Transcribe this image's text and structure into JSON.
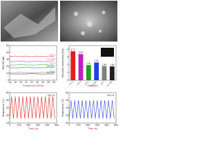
{
  "chart_data": [
    {
      "type": "line",
      "xlabel": "Frequency (GHz)",
      "ylabel": "EMI SE (dB)",
      "x": [
        18,
        19,
        20,
        21,
        22,
        23,
        24,
        25,
        26
      ],
      "xlim": [
        18,
        26.5
      ],
      "xticks": [
        18,
        19,
        20,
        21,
        22,
        23,
        24,
        25,
        26
      ],
      "ylim": [
        0,
        50
      ],
      "yticks": [
        0,
        10,
        20,
        30,
        40,
        50
      ],
      "series": [
        {
          "name": "Ni-C-6",
          "color": "#e02020",
          "values": [
            34,
            35,
            34,
            35,
            34,
            35,
            34,
            35,
            34
          ]
        },
        {
          "name": "Ni-C-8(A)",
          "color": "#c020c0",
          "values": [
            27,
            27,
            28,
            27,
            27,
            28,
            27,
            27,
            28
          ]
        },
        {
          "name": "Ni-C-4",
          "color": "#20a020",
          "values": [
            22,
            22,
            23,
            22,
            22,
            22,
            23,
            22,
            22
          ]
        },
        {
          "name": "Ni-C-6(G)",
          "color": "#2040e0",
          "values": [
            18,
            18,
            18,
            19,
            18,
            18,
            18,
            19,
            18
          ]
        },
        {
          "name": "Ni-C-2",
          "color": "#808080",
          "values": [
            11,
            11,
            12,
            11,
            11,
            11,
            12,
            11,
            11
          ]
        },
        {
          "name": "Ni-C-4(G)",
          "color": "#202020",
          "values": [
            9,
            9,
            9,
            9,
            10,
            9,
            9,
            9,
            9
          ]
        }
      ]
    },
    {
      "type": "bar",
      "xlabel": "Samples",
      "ylabel": "Electrical conductivity (S/m)",
      "categories": [
        "Ni-C-6",
        "Ni-C-8",
        "Ni-C-4",
        "Ni-C-6(G)",
        "Ni-C-2",
        "Ni-C-4(G)"
      ],
      "values": [
        3.77,
        3.4,
        1.97,
        2.31,
        1.84,
        1.8
      ],
      "value_labels": [
        "3.77",
        "3.40",
        "1.97",
        "2.31",
        "1.84",
        "1.80"
      ],
      "colors": [
        "#e02020",
        "#c020c0",
        "#20a020",
        "#2040e0",
        "#808080",
        "#202020"
      ],
      "ylim": [
        0,
        4.5
      ],
      "yticks": [
        0,
        1,
        2,
        3,
        4
      ]
    },
    {
      "type": "line",
      "xlabel": "Time (s)",
      "ylabel": "Temperature (°C)",
      "label": "Ni-C-6",
      "x": [
        0,
        20,
        40,
        60,
        80,
        100,
        120,
        140,
        160,
        180,
        200,
        220,
        240,
        260,
        280,
        300,
        320,
        340,
        360,
        380,
        400,
        420,
        440,
        460,
        480
      ],
      "xlim": [
        0,
        500
      ],
      "xticks": [
        0,
        100,
        200,
        300,
        400,
        500
      ],
      "ylim": [
        20,
        60
      ],
      "yticks": [
        20,
        30,
        40,
        50,
        60
      ],
      "series": [
        {
          "name": "Ni-C-6",
          "color": "#e02020",
          "values": [
            25,
            55,
            26,
            55,
            26,
            55,
            26,
            55,
            26,
            55,
            26,
            55,
            26,
            55,
            26,
            55,
            26,
            55,
            26,
            55,
            26,
            55,
            26,
            55,
            26
          ]
        }
      ]
    },
    {
      "type": "line",
      "xlabel": "Time (s)",
      "ylabel": "Temperature (°C)",
      "label": "Ni-C-8",
      "x": [
        0,
        20,
        40,
        60,
        80,
        100,
        120,
        140,
        160,
        180,
        200,
        220,
        240,
        260,
        280,
        300,
        320,
        340,
        360,
        380,
        400,
        420,
        440,
        460,
        480
      ],
      "xlim": [
        0,
        500
      ],
      "xticks": [
        0,
        100,
        200,
        300,
        400,
        500
      ],
      "ylim": [
        20,
        60
      ],
      "yticks": [
        20,
        30,
        40,
        50,
        60
      ],
      "series": [
        {
          "name": "Ni-C-8",
          "color": "#3040d0",
          "values": [
            25,
            50,
            26,
            50,
            26,
            50,
            26,
            50,
            26,
            50,
            26,
            50,
            26,
            50,
            26,
            50,
            26,
            50,
            26,
            50,
            26,
            50,
            26,
            50,
            26
          ]
        }
      ]
    }
  ]
}
